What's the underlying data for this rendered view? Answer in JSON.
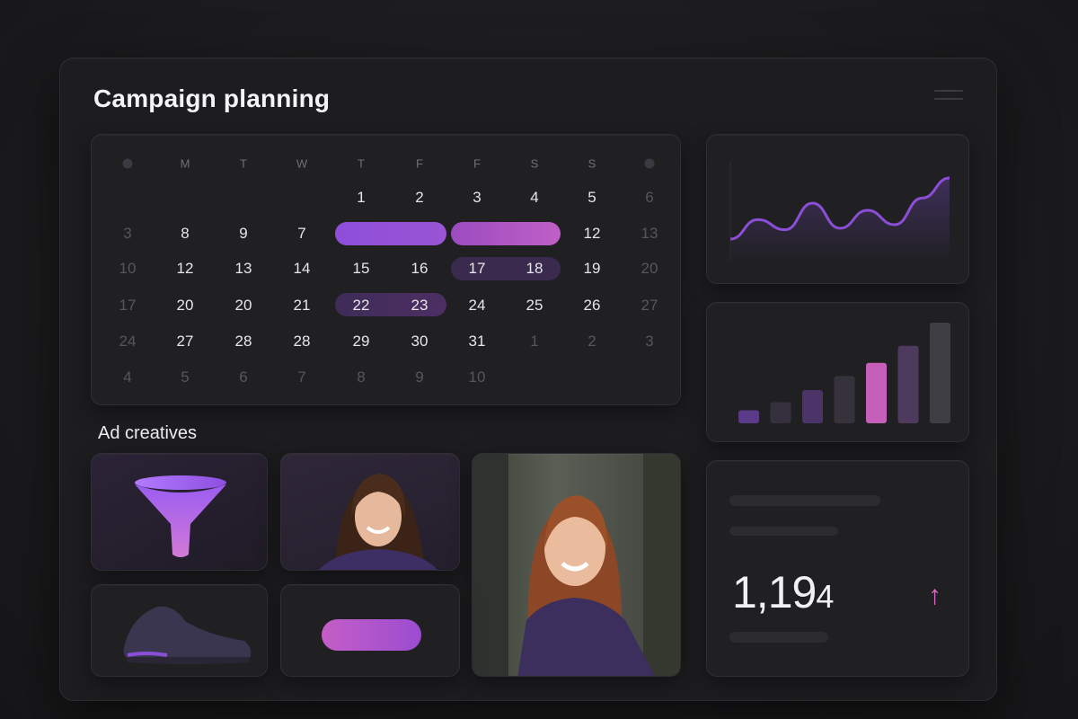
{
  "page": {
    "title": "Campaign planning"
  },
  "calendar": {
    "weekdays": [
      "M",
      "T",
      "W",
      "T",
      "F",
      "F",
      "S",
      "S"
    ],
    "rows": [
      [
        {
          "t": "",
          "k": "cur"
        },
        {
          "t": "",
          "k": "cur"
        },
        {
          "t": "",
          "k": "cur"
        },
        {
          "t": "1",
          "k": "cur"
        },
        {
          "t": "2",
          "k": "cur"
        },
        {
          "t": "3",
          "k": "cur"
        },
        {
          "t": "4",
          "k": "cur"
        },
        {
          "t": "5",
          "k": "cur"
        },
        {
          "t": "6",
          "k": "dim"
        }
      ],
      [
        {
          "t": "3",
          "k": "dim"
        },
        {
          "t": "8",
          "k": "cur"
        },
        {
          "t": "9",
          "k": "cur"
        },
        {
          "t": "7",
          "k": "cur"
        },
        {
          "t": "",
          "k": "cur"
        },
        {
          "t": "",
          "k": "cur"
        },
        {
          "t": "",
          "k": "cur"
        },
        {
          "t": "",
          "k": "cur"
        },
        {
          "t": "12",
          "k": "cur"
        },
        {
          "t": "13",
          "k": "dim"
        }
      ],
      [
        {
          "t": "10",
          "k": "dim"
        },
        {
          "t": "12",
          "k": "cur"
        },
        {
          "t": "13",
          "k": "cur"
        },
        {
          "t": "14",
          "k": "cur"
        },
        {
          "t": "15",
          "k": "cur"
        },
        {
          "t": "16",
          "k": "cur"
        },
        {
          "t": "17",
          "k": "cur"
        },
        {
          "t": "18",
          "k": "cur"
        },
        {
          "t": "19",
          "k": "cur"
        },
        {
          "t": "20",
          "k": "dim"
        }
      ],
      [
        {
          "t": "17",
          "k": "dim"
        },
        {
          "t": "20",
          "k": "cur"
        },
        {
          "t": "20",
          "k": "cur"
        },
        {
          "t": "21",
          "k": "cur"
        },
        {
          "t": "22",
          "k": "cur"
        },
        {
          "t": "23",
          "k": "cur"
        },
        {
          "t": "24",
          "k": "cur"
        },
        {
          "t": "25",
          "k": "cur"
        },
        {
          "t": "26",
          "k": "cur"
        },
        {
          "t": "27",
          "k": "dim"
        }
      ],
      [
        {
          "t": "24",
          "k": "dim"
        },
        {
          "t": "27",
          "k": "cur"
        },
        {
          "t": "28",
          "k": "cur"
        },
        {
          "t": "28",
          "k": "cur"
        },
        {
          "t": "29",
          "k": "cur"
        },
        {
          "t": "30",
          "k": "cur"
        },
        {
          "t": "31",
          "k": "cur"
        },
        {
          "t": "1",
          "k": "dim"
        },
        {
          "t": "2",
          "k": "dim"
        },
        {
          "t": "3",
          "k": "dim"
        }
      ],
      [
        {
          "t": "4",
          "k": "dim"
        },
        {
          "t": "5",
          "k": "dim"
        },
        {
          "t": "6",
          "k": "dim"
        },
        {
          "t": "7",
          "k": "dim"
        },
        {
          "t": "8",
          "k": "dim"
        },
        {
          "t": "9",
          "k": "dim"
        },
        {
          "t": "10",
          "k": "dim"
        }
      ]
    ]
  },
  "creatives": {
    "label": "Ad creatives"
  },
  "line_chart": {
    "values": [
      0.05,
      0.32,
      0.18,
      0.55,
      0.2,
      0.45,
      0.25,
      0.62,
      0.9
    ]
  },
  "bar_chart": {
    "values": [
      0.13,
      0.21,
      0.33,
      0.47,
      0.6,
      0.77,
      1.0
    ],
    "colors": [
      "#5b3a8a",
      "#35303d",
      "#4a3468",
      "#36323c",
      "#c65fb8",
      "#4d3a5d",
      "#3f3e44"
    ]
  },
  "stat": {
    "big": "1,19",
    "small": "4",
    "trend": "↑",
    "trend_color": "#d868c6"
  },
  "colors": {
    "accent_purple": "#8a4fd6",
    "accent_pink": "#c65fc4"
  }
}
